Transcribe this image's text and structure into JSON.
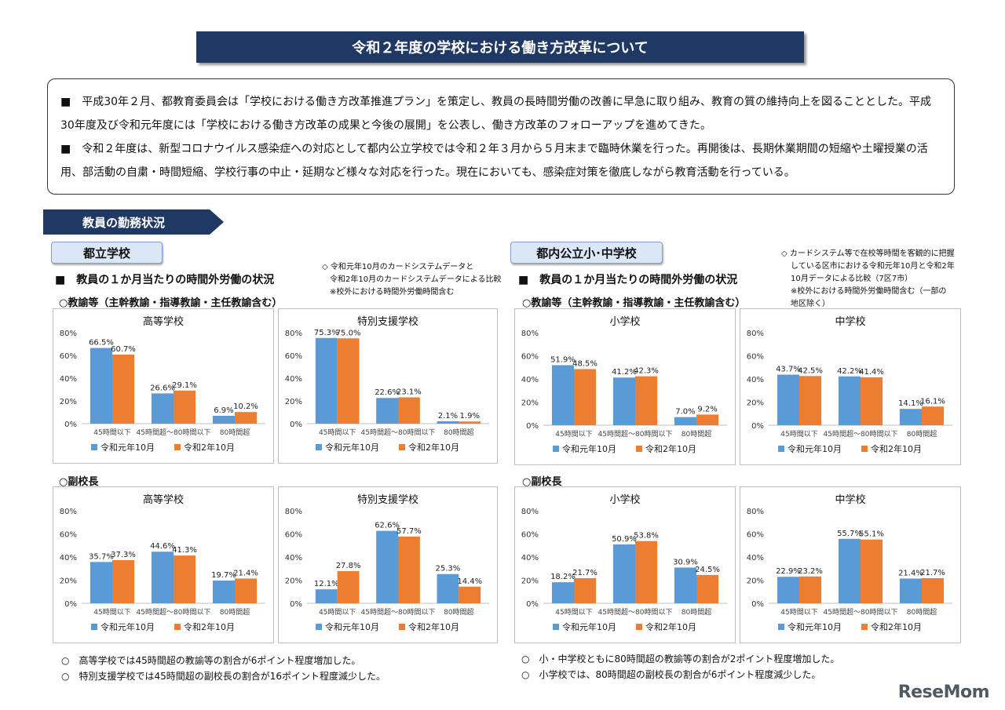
{
  "title": "令和２年度の学校における働き方改革について",
  "intro": {
    "p1": "■　平成30年２月、都教育委員会は「学校における働き方改革推進プラン」を策定し、教員の長時間労働の改善に早急に取り組み、教育の質の維持向上を図ることとした。平成30年度及び令和元年度には「学校における働き方改革の成果と今後の展開」を公表し、働き方改革のフォローアップを進めてきた。",
    "p2": "■　令和２年度は、新型コロナウイルス感染症への対応として都内公立学校では令和２年３月から５月末まで臨時休業を行った。再開後は、長期休業期間の短縮や土曜授業の活用、部活動の自粛・時間短縮、学校行事の中止・延期など様々な対応を行った。現在においても、感染症対策を徹底しながら教育活動を行っている。"
  },
  "section_label": "教員の勤務状況",
  "left": {
    "pill": "都立学校",
    "heading": "■　教員の１か月当たりの時間外労働の状況",
    "note": [
      "◇ 令和元年10月のカードシステムデータと",
      "令和2年10月のカードシステムデータによる比較",
      "※校外における時間外労働時間含む"
    ],
    "teachers_label": "○教諭等（主幹教諭・指導教諭・主任教諭含む）",
    "vp_label": "○副校長",
    "footnotes": [
      "○　高等学校では45時間超の教諭等の割合が6ポイント程度増加した。",
      "○　特別支援学校では45時間超の副校長の割合が16ポイント程度減少した。"
    ]
  },
  "right": {
    "pill": "都内公立小･中学校",
    "heading": "■　教員の１か月当たりの時間外労働の状況",
    "note": [
      "◇ カードシステム等で在校等時間を客観的に把握",
      "している区市における令和元年10月と令和2年",
      "10月データによる比較（7区7市）",
      "※校外における時間外労働時間含む（一部の",
      "地区除く）"
    ],
    "teachers_label": "○教諭等（主幹教諭・指導教諭・主任教諭含む）",
    "vp_label": "○副校長",
    "footnotes": [
      "○　小・中学校ともに80時間超の教諭等の割合が2ポイント程度増加した。",
      "○　小学校では、80時間超の副校長の割合が6ポイント程度減少した。"
    ]
  },
  "logo": "ReseMom",
  "colors": {
    "series1": "#5b9bd5",
    "series2": "#ed7d31",
    "banner": "#1f3864"
  },
  "chart_data": [
    {
      "type": "bar",
      "title": "高等学校",
      "group": "教諭等",
      "categories": [
        "45時間以下",
        "45時間超～80時間以下",
        "80時間超"
      ],
      "series": [
        {
          "name": "令和元年10月",
          "values": [
            66.5,
            26.6,
            6.9
          ]
        },
        {
          "name": "令和2年10月",
          "values": [
            60.7,
            29.1,
            10.2
          ]
        }
      ],
      "ylim": [
        0,
        80
      ],
      "yticks": [
        "0%",
        "20%",
        "40%",
        "60%",
        "80%"
      ],
      "labels": [
        [
          "66.5%",
          "26.6%",
          "6.9%"
        ],
        [
          "60.7%",
          "29.1%",
          "10.2%"
        ]
      ],
      "legend": "bottom"
    },
    {
      "type": "bar",
      "title": "特別支援学校",
      "group": "教諭等",
      "categories": [
        "45時間以下",
        "45時間超～80時間以下",
        "80時間超"
      ],
      "series": [
        {
          "name": "令和元年10月",
          "values": [
            75.3,
            22.6,
            2.1
          ]
        },
        {
          "name": "令和2年10月",
          "values": [
            75.0,
            23.1,
            1.9
          ]
        }
      ],
      "ylim": [
        0,
        80
      ],
      "yticks": [
        "0%",
        "20%",
        "40%",
        "60%",
        "80%"
      ],
      "labels": [
        [
          "75.3%",
          "22.6%",
          "2.1%"
        ],
        [
          "75.0%",
          "23.1%",
          "1.9%"
        ]
      ],
      "legend": "bottom"
    },
    {
      "type": "bar",
      "title": "小学校",
      "group": "教諭等",
      "categories": [
        "45時間以下",
        "45時間超～80時間以下",
        "80時間超"
      ],
      "series": [
        {
          "name": "令和元年10月",
          "values": [
            51.9,
            41.2,
            7.0
          ]
        },
        {
          "name": "令和2年10月",
          "values": [
            48.5,
            42.3,
            9.2
          ]
        }
      ],
      "ylim": [
        0,
        80
      ],
      "yticks": [
        "0%",
        "20%",
        "40%",
        "60%",
        "80%"
      ],
      "labels": [
        [
          "51.9%",
          "41.2%",
          "7.0%"
        ],
        [
          "48.5%",
          "42.3%",
          "9.2%"
        ]
      ],
      "legend": "bottom"
    },
    {
      "type": "bar",
      "title": "中学校",
      "group": "教諭等",
      "categories": [
        "45時間以下",
        "45時間超～80時間以下",
        "80時間超"
      ],
      "series": [
        {
          "name": "令和元年10月",
          "values": [
            43.7,
            42.2,
            14.1
          ]
        },
        {
          "name": "令和2年10月",
          "values": [
            42.5,
            41.4,
            16.1
          ]
        }
      ],
      "ylim": [
        0,
        80
      ],
      "yticks": [
        "0%",
        "20%",
        "40%",
        "60%",
        "80%"
      ],
      "labels": [
        [
          "43.7%",
          "42.2%",
          "14.1%"
        ],
        [
          "42.5%",
          "41.4%",
          "16.1%"
        ]
      ],
      "legend": "bottom"
    },
    {
      "type": "bar",
      "title": "高等学校",
      "group": "副校長",
      "categories": [
        "45時間以下",
        "45時間超～80時間以下",
        "80時間超"
      ],
      "series": [
        {
          "name": "令和元年10月",
          "values": [
            35.7,
            44.6,
            19.7
          ]
        },
        {
          "name": "令和2年10月",
          "values": [
            37.3,
            41.3,
            21.4
          ]
        }
      ],
      "ylim": [
        0,
        80
      ],
      "yticks": [
        "0%",
        "20%",
        "40%",
        "60%",
        "80%"
      ],
      "labels": [
        [
          "35.7%",
          "44.6%",
          "19.7%"
        ],
        [
          "37.3%",
          "41.3%",
          "21.4%"
        ]
      ],
      "legend": "bottom"
    },
    {
      "type": "bar",
      "title": "特別支援学校",
      "group": "副校長",
      "categories": [
        "45時間以下",
        "45時間超～80時間以下",
        "80時間超"
      ],
      "series": [
        {
          "name": "令和元年10月",
          "values": [
            12.1,
            62.6,
            25.3
          ]
        },
        {
          "name": "令和2年10月",
          "values": [
            27.8,
            57.7,
            14.4
          ]
        }
      ],
      "ylim": [
        0,
        80
      ],
      "yticks": [
        "0%",
        "20%",
        "40%",
        "60%",
        "80%"
      ],
      "labels": [
        [
          "12.1%",
          "62.6%",
          "25.3%"
        ],
        [
          "27.8%",
          "57.7%",
          "14.4%"
        ]
      ],
      "legend": "bottom"
    },
    {
      "type": "bar",
      "title": "小学校",
      "group": "副校長",
      "categories": [
        "45時間以下",
        "45時間超～80時間以下",
        "80時間超"
      ],
      "series": [
        {
          "name": "令和元年10月",
          "values": [
            18.2,
            50.9,
            30.9
          ]
        },
        {
          "name": "令和2年10月",
          "values": [
            21.7,
            53.8,
            24.5
          ]
        }
      ],
      "ylim": [
        0,
        80
      ],
      "yticks": [
        "0%",
        "20%",
        "40%",
        "60%",
        "80%"
      ],
      "labels": [
        [
          "18.2%",
          "50.9%",
          "30.9%"
        ],
        [
          "21.7%",
          "53.8%",
          "24.5%"
        ]
      ],
      "legend": "bottom"
    },
    {
      "type": "bar",
      "title": "中学校",
      "group": "副校長",
      "categories": [
        "45時間以下",
        "45時間超～80時間以下",
        "80時間超"
      ],
      "series": [
        {
          "name": "令和元年10月",
          "values": [
            22.9,
            55.7,
            21.4
          ]
        },
        {
          "name": "令和2年10月",
          "values": [
            23.2,
            55.1,
            21.7
          ]
        }
      ],
      "ylim": [
        0,
        80
      ],
      "yticks": [
        "0%",
        "20%",
        "40%",
        "60%",
        "80%"
      ],
      "labels": [
        [
          "22.9%",
          "55.7%",
          "21.4%"
        ],
        [
          "23.2%",
          "55.1%",
          "21.7%"
        ]
      ],
      "legend": "bottom"
    }
  ]
}
